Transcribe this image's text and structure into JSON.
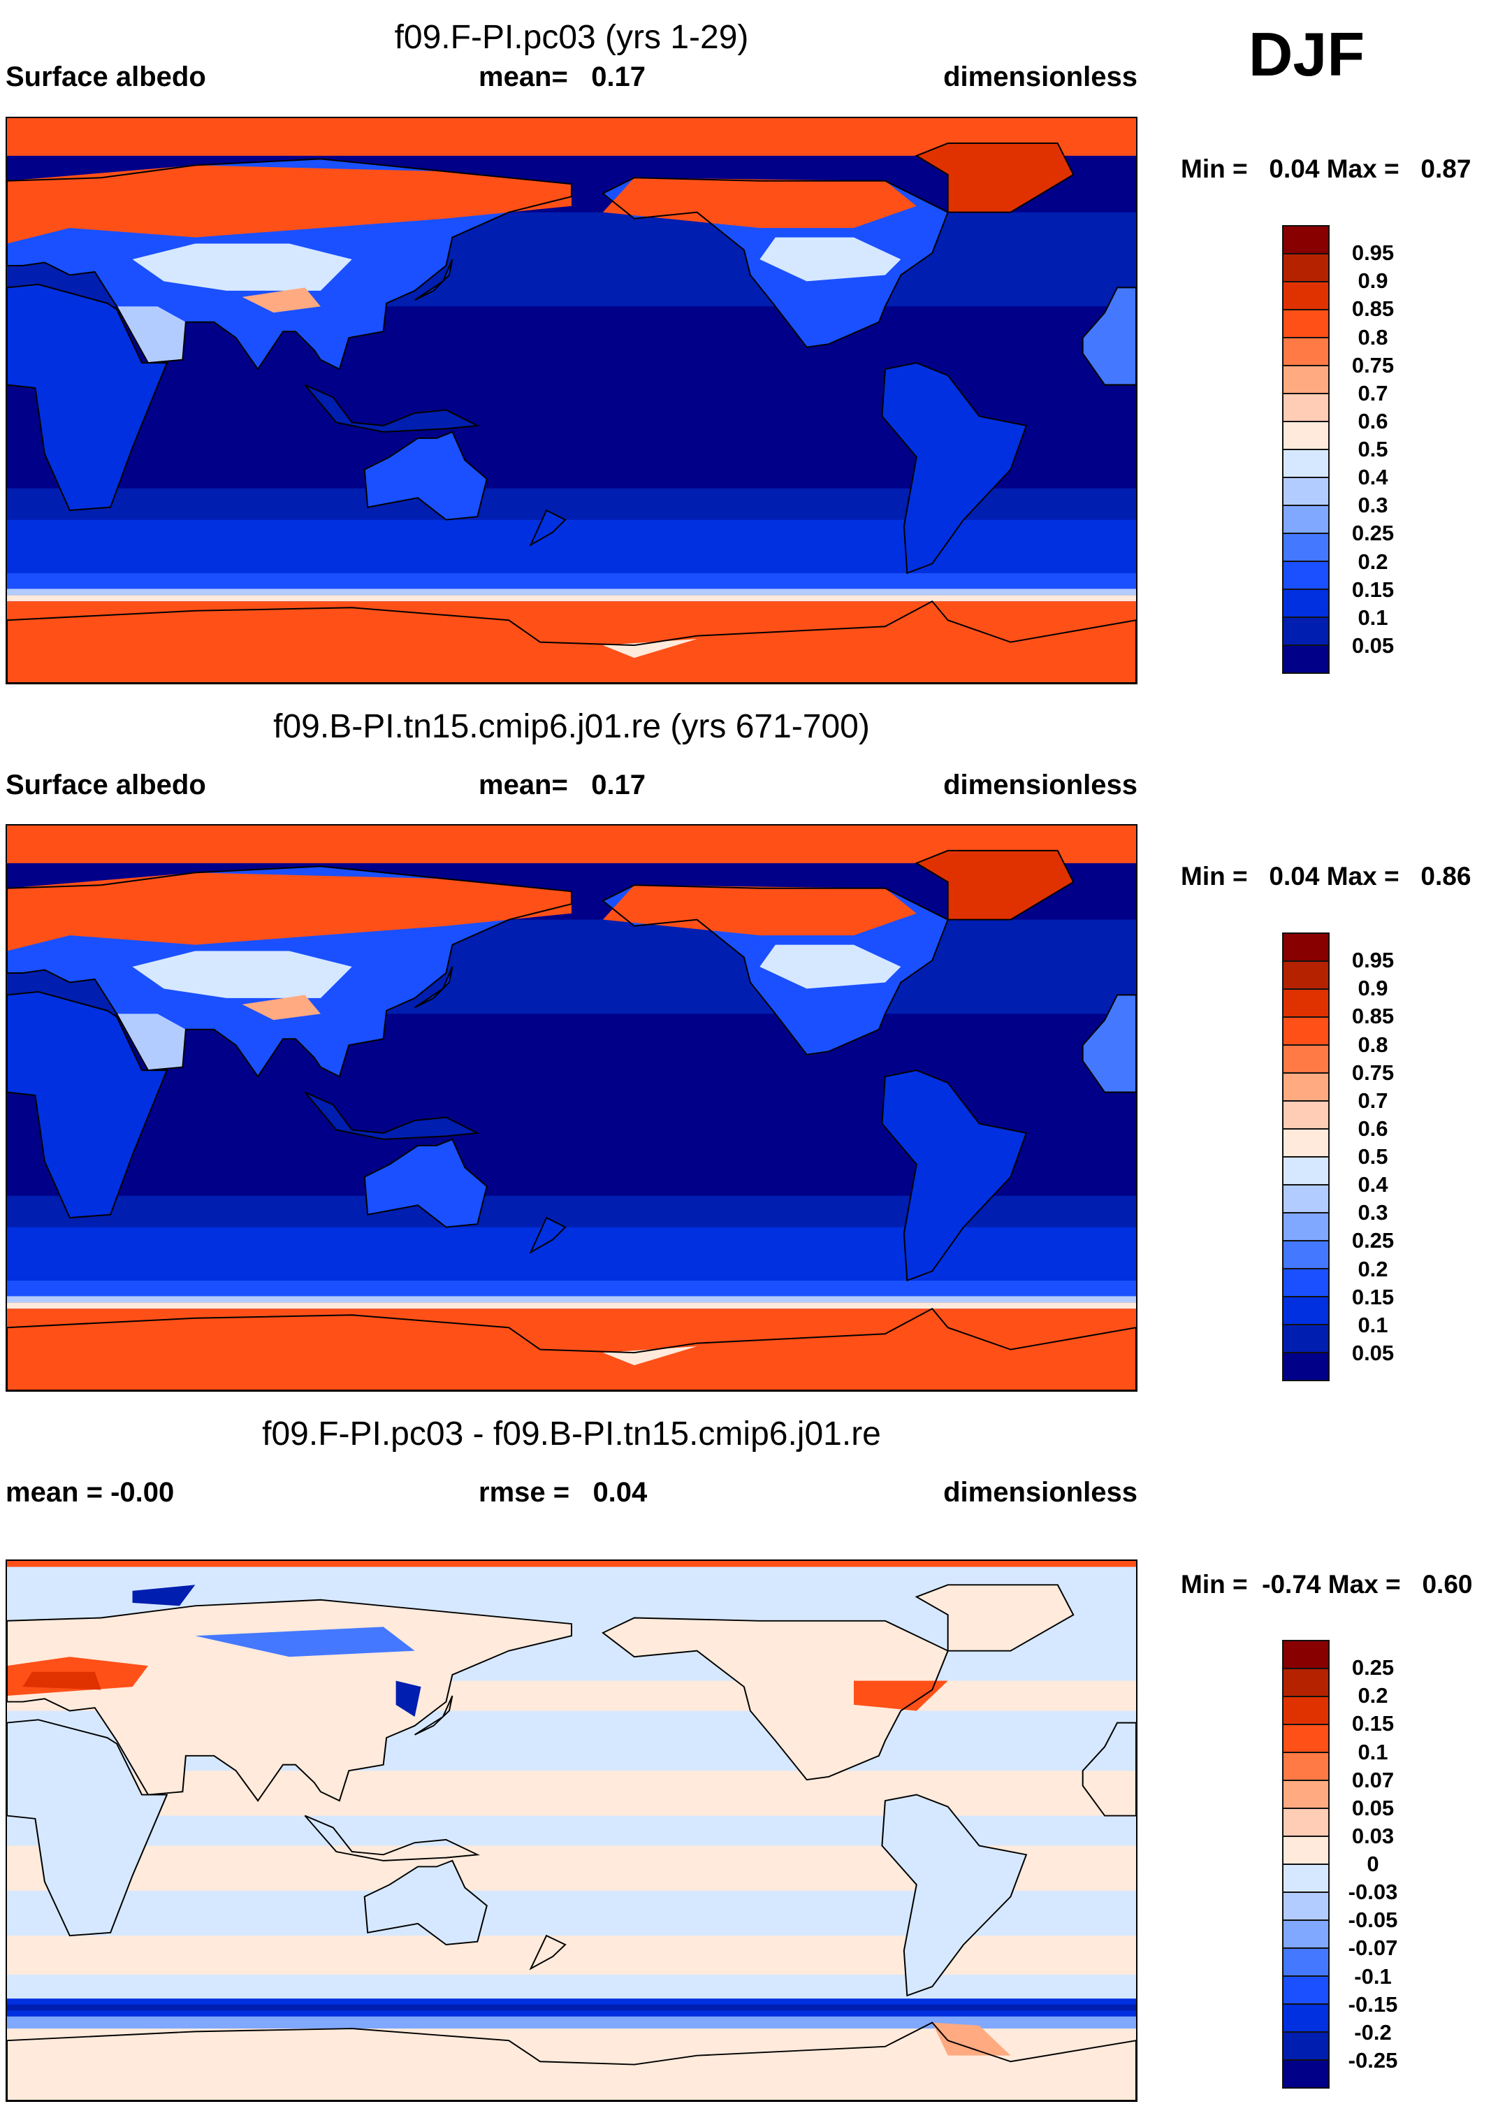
{
  "season": "DJF",
  "panels": [
    {
      "title": "f09.F-PI.pc03 (yrs 1-29)",
      "left": "Surface albedo",
      "center": "mean=   0.17",
      "right": "dimensionless",
      "minmax": "Min =   0.04 Max =   0.87",
      "map_type": "abs"
    },
    {
      "title": "f09.B-PI.tn15.cmip6.j01.re (yrs 671-700)",
      "left": "Surface albedo",
      "center": "mean=   0.17",
      "right": "dimensionless",
      "minmax": "Min =   0.04 Max =   0.86",
      "map_type": "abs"
    },
    {
      "title": "f09.F-PI.pc03 - f09.B-PI.tn15.cmip6.j01.re",
      "left": "mean =  -0.00",
      "center": "rmse =   0.04",
      "right": "dimensionless",
      "minmax": "Min =  -0.74 Max =   0.60",
      "map_type": "diff"
    }
  ],
  "chart_data": [
    {
      "type": "heatmap",
      "title": "f09.F-PI.pc03 (yrs 1-29)",
      "variable": "Surface albedo",
      "units": "dimensionless",
      "mean": 0.17,
      "min": 0.04,
      "max": 0.87,
      "colorbar_levels": [
        "0.95",
        "0.9",
        "0.85",
        "0.8",
        "0.75",
        "0.7",
        "0.6",
        "0.5",
        "0.4",
        "0.3",
        "0.25",
        "0.2",
        "0.15",
        "0.1",
        "0.05"
      ]
    },
    {
      "type": "heatmap",
      "title": "f09.B-PI.tn15.cmip6.j01.re (yrs 671-700)",
      "variable": "Surface albedo",
      "units": "dimensionless",
      "mean": 0.17,
      "min": 0.04,
      "max": 0.86,
      "colorbar_levels": [
        "0.95",
        "0.9",
        "0.85",
        "0.8",
        "0.75",
        "0.7",
        "0.6",
        "0.5",
        "0.4",
        "0.3",
        "0.25",
        "0.2",
        "0.15",
        "0.1",
        "0.05"
      ]
    },
    {
      "type": "heatmap",
      "title": "f09.F-PI.pc03 - f09.B-PI.tn15.cmip6.j01.re",
      "units": "dimensionless",
      "mean": -0.0,
      "rmse": 0.04,
      "min": -0.74,
      "max": 0.6,
      "colorbar_levels": [
        "0.25",
        "0.2",
        "0.15",
        "0.1",
        "0.07",
        "0.05",
        "0.03",
        "0",
        "-0.03",
        "-0.05",
        "-0.07",
        "-0.1",
        "-0.15",
        "-0.2",
        "-0.25"
      ]
    }
  ],
  "colors": [
    "#880000",
    "#b52200",
    "#e03200",
    "#ff5018",
    "#ff7a45",
    "#ffaa80",
    "#ffccb5",
    "#ffeadb",
    "#d6e8ff",
    "#b3ccff",
    "#80a8ff",
    "#4478ff",
    "#1a50ff",
    "#0030e0",
    "#001eb0",
    "#000088"
  ]
}
